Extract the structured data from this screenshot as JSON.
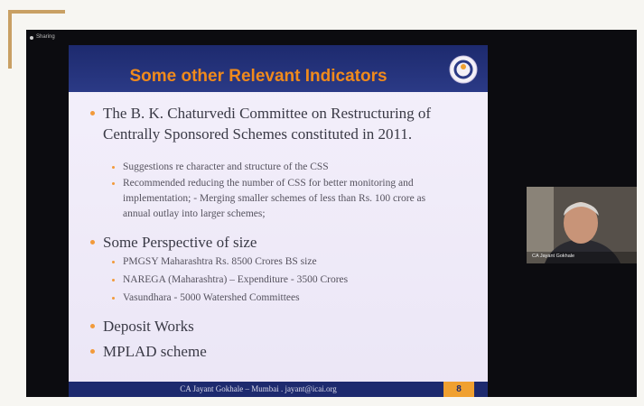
{
  "window": {
    "status": "Sharing"
  },
  "slide": {
    "title": "Some other Relevant Indicators",
    "bullets": [
      {
        "text": "The B. K. Chaturvedi Committee on Restructuring of Centrally Sponsored Schemes constituted in 2011.",
        "sub": [
          "Suggestions re character and structure of the CSS",
          "Recommended reducing the number of CSS for better monitoring and implementation; - Merging smaller schemes of less than Rs. 100 crore as annual outlay into larger schemes;"
        ]
      },
      {
        "text": "Some Perspective of size",
        "sub": [
          "PMGSY Maharashtra Rs. 8500 Crores BS size",
          "NAREGA (Maharashtra) – Expenditure - 3500 Crores",
          "Vasundhara - 5000 Watershed Committees"
        ]
      },
      {
        "text": "Deposit Works",
        "sub": []
      },
      {
        "text": "MPLAD scheme",
        "sub": []
      }
    ],
    "footer": "CA Jayant Gokhale – Mumbai .  jayant@icai.org",
    "page_number": "8"
  },
  "participant": {
    "name": "CA Jayant Gokhale"
  }
}
